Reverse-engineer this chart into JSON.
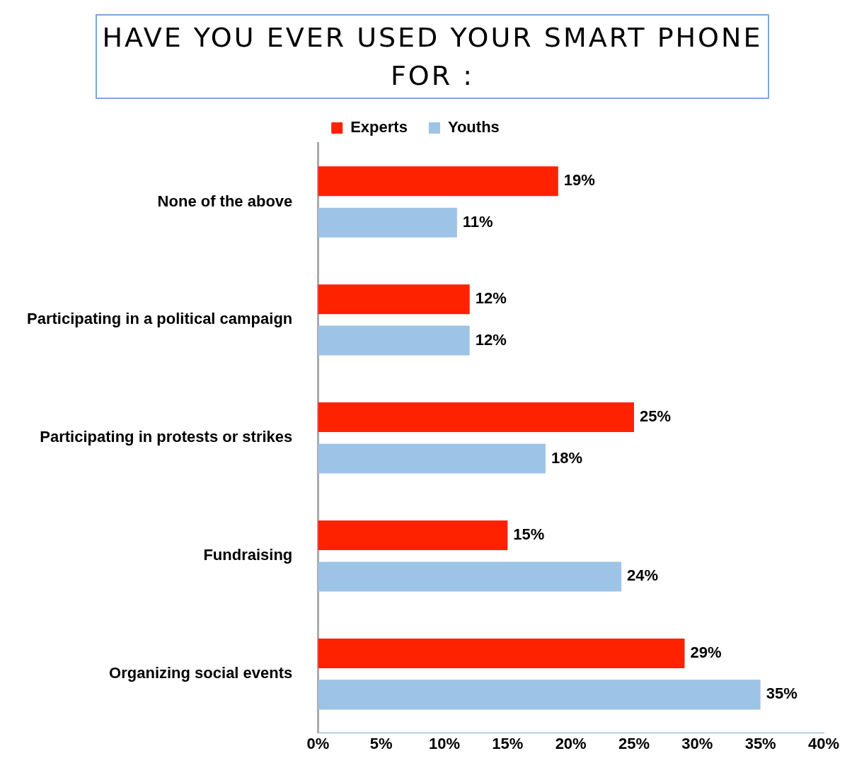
{
  "chart_data": {
    "type": "bar",
    "orientation": "horizontal",
    "title": "HAVE YOU EVER USED YOUR SMART PHONE FOR :",
    "categories": [
      "None of the above",
      "Participating in a political campaign",
      "Participating in protests or strikes",
      "Fundraising",
      "Organizing social events"
    ],
    "series": [
      {
        "name": "Experts",
        "color": "#ff2200",
        "values": [
          19,
          12,
          25,
          15,
          29
        ],
        "value_labels": [
          "19%",
          "12%",
          "25%",
          "15%",
          "29%"
        ]
      },
      {
        "name": "Youths",
        "color": "#9dc3e6",
        "values": [
          11,
          12,
          18,
          24,
          35
        ],
        "value_labels": [
          "11%",
          "12%",
          "18%",
          "24%",
          "35%"
        ]
      }
    ],
    "xlim": [
      0,
      40
    ],
    "xticks": [
      {
        "value": 0,
        "label": "0%"
      },
      {
        "value": 5,
        "label": "5%"
      },
      {
        "value": 10,
        "label": "10%"
      },
      {
        "value": 15,
        "label": "15%"
      },
      {
        "value": 20,
        "label": "20%"
      },
      {
        "value": 25,
        "label": "25%"
      },
      {
        "value": 30,
        "label": "30%"
      },
      {
        "value": 35,
        "label": "35%"
      },
      {
        "value": 40,
        "label": "40%"
      }
    ],
    "grid": false,
    "legend": "top"
  }
}
